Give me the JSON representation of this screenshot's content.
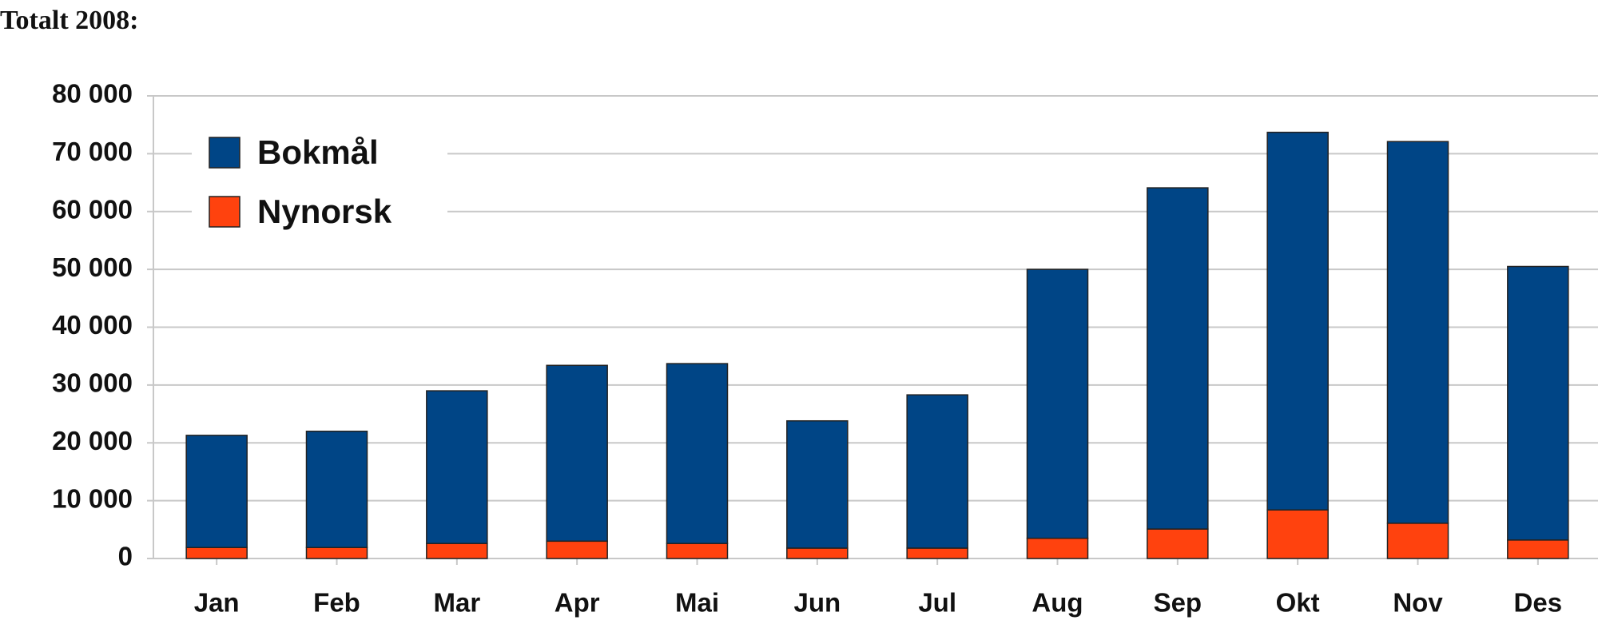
{
  "chart_data": {
    "type": "stacked_bar",
    "title": "Totalt 2008:",
    "categories": [
      "Jan",
      "Feb",
      "Mar",
      "Apr",
      "Mai",
      "Jun",
      "Jul",
      "Aug",
      "Sep",
      "Okt",
      "Nov",
      "Des"
    ],
    "series": [
      {
        "name": "Nynorsk",
        "color": "#ff420e",
        "values": [
          1900,
          1900,
          2600,
          3000,
          2600,
          1800,
          1800,
          3500,
          5100,
          8400,
          6100,
          3200
        ]
      },
      {
        "name": "Bokmål",
        "color": "#004586",
        "values": [
          19400,
          20100,
          26400,
          30400,
          31100,
          22000,
          26500,
          46500,
          59000,
          65300,
          66000,
          47300
        ]
      }
    ],
    "ylim": [
      0,
      80000
    ],
    "yticks": [
      0,
      {
        "value": 10000,
        "label": "10 000"
      },
      {
        "value": 20000,
        "label": "20 000"
      },
      {
        "value": 30000,
        "label": "30 000"
      },
      {
        "value": 40000,
        "label": "40 000"
      },
      {
        "value": 50000,
        "label": "50 000"
      },
      {
        "value": 60000,
        "label": "60 000"
      },
      {
        "value": 70000,
        "label": "70 000"
      },
      {
        "value": 80000,
        "label": "80 000"
      }
    ],
    "grid": true,
    "legend": "upper left"
  }
}
